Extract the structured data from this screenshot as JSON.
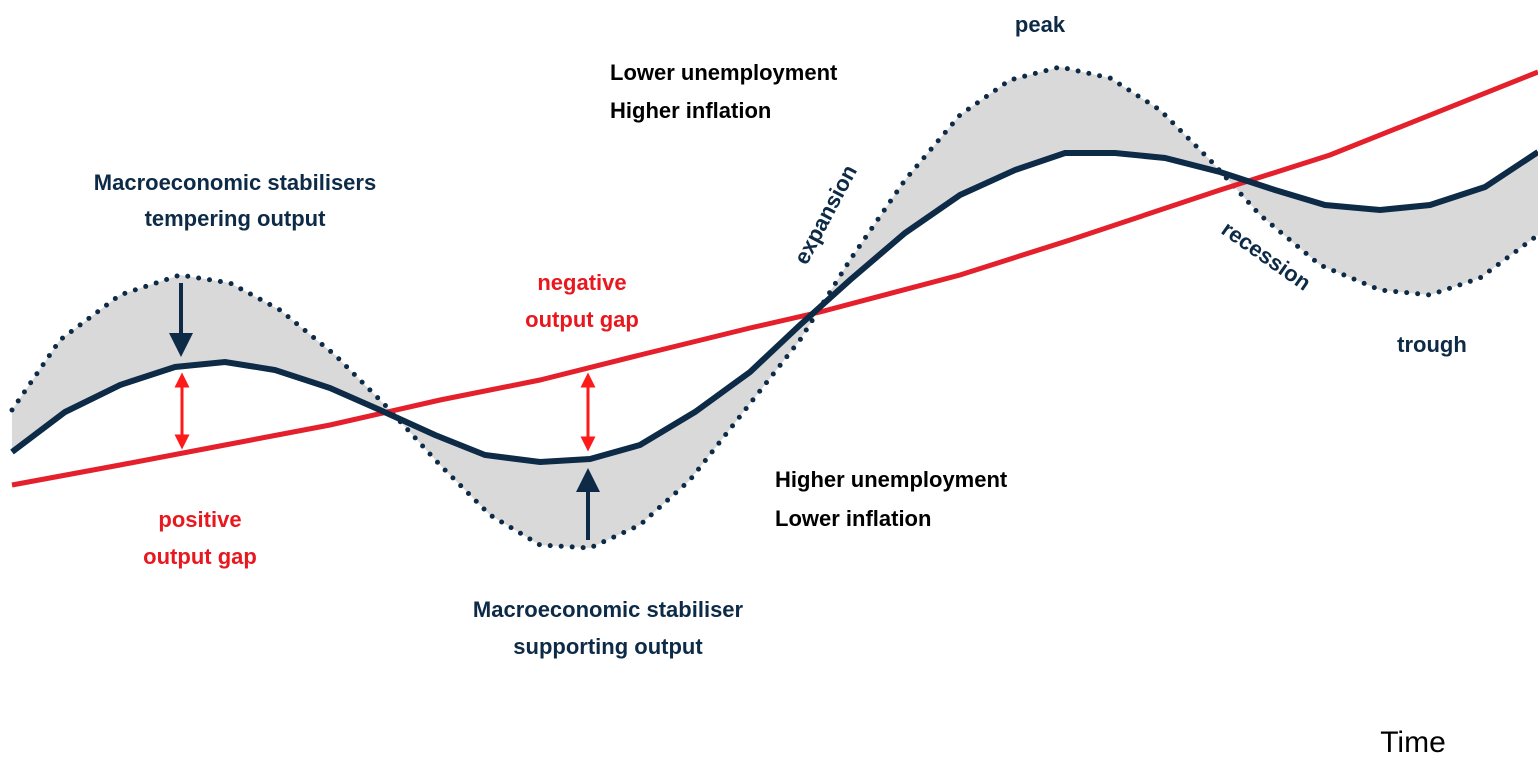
{
  "labels": {
    "peak": "peak",
    "trough": "trough",
    "expansion": "expansion",
    "recession": "recession",
    "boom_effects": [
      "Lower unemployment",
      "Higher inflation"
    ],
    "slump_effects": [
      "Higher unemployment",
      "Lower inflation"
    ],
    "stabilisers_tempering": [
      "Macroeconomic stabilisers",
      "tempering output"
    ],
    "stabiliser_supporting": [
      "Macroeconomic stabiliser",
      "supporting output"
    ],
    "positive_gap": [
      "positive",
      "output gap"
    ],
    "negative_gap": [
      "negative",
      "output gap"
    ],
    "x_axis": "Time"
  }
}
